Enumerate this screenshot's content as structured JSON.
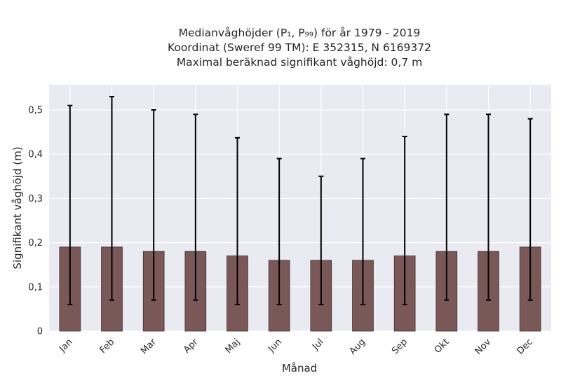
{
  "chart_data": {
    "type": "bar",
    "title_lines": [
      "Medianvåghöjder (P₁, P₉₉) för år 1979 - 2019",
      "Koordinat (Sweref 99 TM): E 352315, N 6169372",
      "Maximal beräknad signifikant våghöjd: 0,7 m"
    ],
    "xlabel": "Månad",
    "ylabel": "Signifikant våghöjd (m)",
    "categories": [
      "Jan",
      "Feb",
      "Mar",
      "Apr",
      "Maj",
      "Jun",
      "Jul",
      "Aug",
      "Sep",
      "Okt",
      "Nov",
      "Dec"
    ],
    "series": [
      {
        "values": [
          0.19,
          0.19,
          0.18,
          0.18,
          0.17,
          0.16,
          0.16,
          0.16,
          0.17,
          0.18,
          0.18,
          0.19
        ],
        "error_low": [
          0.06,
          0.07,
          0.07,
          0.07,
          0.06,
          0.06,
          0.06,
          0.06,
          0.06,
          0.07,
          0.07,
          0.07
        ],
        "error_high": [
          0.51,
          0.53,
          0.5,
          0.49,
          0.437,
          0.39,
          0.35,
          0.39,
          0.44,
          0.49,
          0.49,
          0.48
        ]
      }
    ],
    "yticks": [
      {
        "value": 0,
        "label": "0"
      },
      {
        "value": 0.1,
        "label": "0,1"
      },
      {
        "value": 0.2,
        "label": "0,2"
      },
      {
        "value": 0.3,
        "label": "0,3"
      },
      {
        "value": 0.4,
        "label": "0,4"
      },
      {
        "value": 0.5,
        "label": "0,5"
      }
    ],
    "ylim": [
      0,
      0.557
    ],
    "grid": true,
    "colors": {
      "bar": "#7b5858",
      "bar_edge": "#3d2b2b",
      "plot_background": "#eaeaf2",
      "grid": "#ffffff",
      "error_bar": "#000000",
      "text": "#262626"
    }
  }
}
